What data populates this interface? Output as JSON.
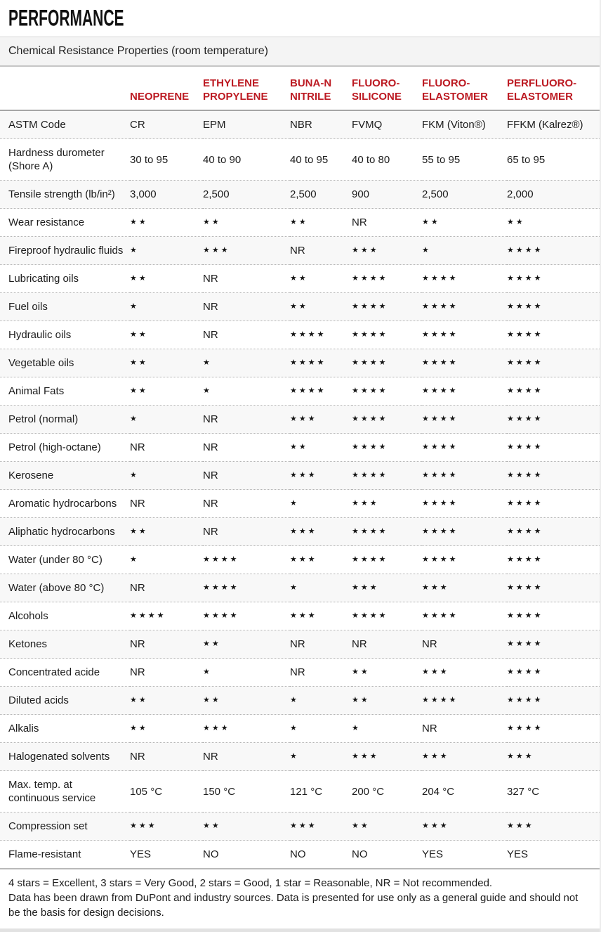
{
  "page": {
    "title": "PERFORMANCE",
    "subtitle": "Chemical Resistance Properties (room temperature)"
  },
  "colors": {
    "accent_red": "#bc1a22",
    "stripe_gray": "#f8f8f8",
    "bar_gray": "#f4f4f4"
  },
  "table": {
    "columns": [
      "NEOPRENE",
      "ETHYLENE\nPROPYLENE",
      "BUNA-N\nNITRILE",
      "FLUORO-\nSILICONE",
      "FLUORO-\nELASTOMER",
      "PERFLUORO-\nELASTOMER"
    ],
    "rows": [
      {
        "label": "ASTM Code",
        "values": [
          "CR",
          "EPM",
          "NBR",
          "FVMQ",
          "FKM (Viton®)",
          "FFKM (Kalrez®)"
        ]
      },
      {
        "label": "Hardness durometer\n(Shore A)",
        "values": [
          "30 to 95",
          "40 to 90",
          "40 to 95",
          "40 to 80",
          "55 to 95",
          "65 to 95"
        ]
      },
      {
        "label": "Tensile strength (lb/in²)",
        "values": [
          "3,000",
          "2,500",
          "2,500",
          "900",
          "2,500",
          "2,000"
        ]
      },
      {
        "label": "Wear resistance",
        "values": [
          "★★",
          "★★",
          "★★",
          "NR",
          "★★",
          "★★"
        ]
      },
      {
        "label": "Fireproof hydraulic fluids",
        "values": [
          "★",
          "★★★",
          "NR",
          "★★★",
          "★",
          "★★★★"
        ]
      },
      {
        "label": "Lubricating oils",
        "values": [
          "★★",
          "NR",
          "★★",
          "★★★★",
          "★★★★",
          "★★★★"
        ]
      },
      {
        "label": "Fuel oils",
        "values": [
          "★",
          "NR",
          "★★",
          "★★★★",
          "★★★★",
          "★★★★"
        ]
      },
      {
        "label": "Hydraulic oils",
        "values": [
          "★★",
          "NR",
          "★★★★",
          "★★★★",
          "★★★★",
          "★★★★"
        ]
      },
      {
        "label": "Vegetable oils",
        "values": [
          "★★",
          "★",
          "★★★★",
          "★★★★",
          "★★★★",
          "★★★★"
        ]
      },
      {
        "label": "Animal Fats",
        "values": [
          "★★",
          "★",
          "★★★★",
          "★★★★",
          "★★★★",
          "★★★★"
        ]
      },
      {
        "label": "Petrol (normal)",
        "values": [
          "★",
          "NR",
          "★★★",
          "★★★★",
          "★★★★",
          "★★★★"
        ]
      },
      {
        "label": "Petrol (high-octane)",
        "values": [
          "NR",
          "NR",
          "★★",
          "★★★★",
          "★★★★",
          "★★★★"
        ]
      },
      {
        "label": "Kerosene",
        "values": [
          "★",
          "NR",
          "★★★",
          "★★★★",
          "★★★★",
          "★★★★"
        ]
      },
      {
        "label": "Aromatic hydrocarbons",
        "values": [
          "NR",
          "NR",
          "★",
          "★★★",
          "★★★★",
          "★★★★"
        ]
      },
      {
        "label": "Aliphatic hydrocarbons",
        "values": [
          "★★",
          "NR",
          "★★★",
          "★★★★",
          "★★★★",
          "★★★★"
        ]
      },
      {
        "label": "Water (under 80 °C)",
        "values": [
          "★",
          "★★★★",
          "★★★",
          "★★★★",
          "★★★★",
          "★★★★"
        ]
      },
      {
        "label": "Water (above 80 °C)",
        "values": [
          "NR",
          "★★★★",
          "★",
          "★★★",
          "★★★",
          "★★★★"
        ]
      },
      {
        "label": "Alcohols",
        "values": [
          "★★★★",
          "★★★★",
          "★★★",
          "★★★★",
          "★★★★",
          "★★★★"
        ]
      },
      {
        "label": "Ketones",
        "values": [
          "NR",
          "★★",
          "NR",
          "NR",
          "NR",
          "★★★★"
        ]
      },
      {
        "label": "Concentrated acide",
        "values": [
          "NR",
          "★",
          "NR",
          "★★",
          "★★★",
          "★★★★"
        ]
      },
      {
        "label": "Diluted acids",
        "values": [
          "★★",
          "★★",
          "★",
          "★★",
          "★★★★",
          "★★★★"
        ]
      },
      {
        "label": "Alkalis",
        "values": [
          "★★",
          "★★★",
          "★",
          "★",
          "NR",
          "★★★★"
        ]
      },
      {
        "label": "Halogenated solvents",
        "values": [
          "NR",
          "NR",
          "★",
          "★★★",
          "★★★",
          "★★★"
        ]
      },
      {
        "label": "Max. temp. at\ncontinuous service",
        "values": [
          "105 °C",
          "150 °C",
          "121 °C",
          "200 °C",
          "204 °C",
          "327 °C"
        ]
      },
      {
        "label": "Compression set",
        "values": [
          "★★★",
          "★★",
          "★★★",
          "★★",
          "★★★",
          "★★★"
        ]
      },
      {
        "label": "Flame-resistant",
        "values": [
          "YES",
          "NO",
          "NO",
          "NO",
          "YES",
          "YES"
        ]
      }
    ]
  },
  "footer": {
    "legend": "4 stars = Excellent, 3 stars = Very Good, 2 stars = Good, 1 star = Reasonable, NR = Not recommended.",
    "note": "Data has been drawn from DuPont and industry sources. Data is presented for use only as a general guide and should not be the basis for design decisions."
  }
}
